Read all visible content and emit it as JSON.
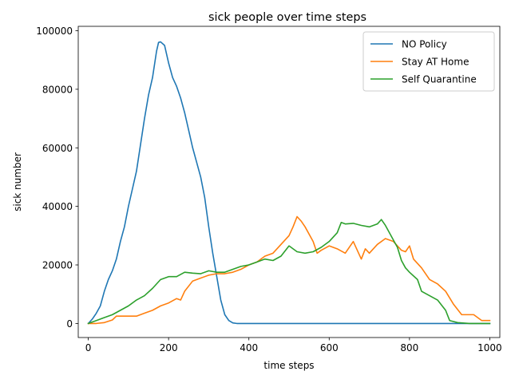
{
  "chart_data": {
    "type": "line",
    "title": "sick people over time steps",
    "xlabel": "time steps",
    "ylabel": "sick number",
    "xlim": [
      -25,
      1025
    ],
    "ylim": [
      -4800,
      101500
    ],
    "xticks": [
      0,
      200,
      400,
      600,
      800,
      1000
    ],
    "yticks": [
      0,
      20000,
      40000,
      60000,
      80000,
      100000
    ],
    "xtick_labels": [
      "0",
      "200",
      "400",
      "600",
      "800",
      "1000"
    ],
    "ytick_labels": [
      "0",
      "20000",
      "40000",
      "60000",
      "80000",
      "100000"
    ],
    "grid": false,
    "legend_position": "top-right",
    "series": [
      {
        "name": "NO Policy",
        "color": "#1f77b4",
        "points": [
          [
            0,
            0
          ],
          [
            10,
            1500
          ],
          [
            20,
            3500
          ],
          [
            30,
            6000
          ],
          [
            40,
            11000
          ],
          [
            50,
            15000
          ],
          [
            60,
            18000
          ],
          [
            70,
            22000
          ],
          [
            80,
            28000
          ],
          [
            90,
            33000
          ],
          [
            100,
            40000
          ],
          [
            110,
            46000
          ],
          [
            120,
            52000
          ],
          [
            130,
            61000
          ],
          [
            140,
            70000
          ],
          [
            150,
            78000
          ],
          [
            160,
            84000
          ],
          [
            170,
            93000
          ],
          [
            175,
            96000
          ],
          [
            180,
            96200
          ],
          [
            190,
            95000
          ],
          [
            200,
            89000
          ],
          [
            210,
            84000
          ],
          [
            220,
            81000
          ],
          [
            230,
            77000
          ],
          [
            240,
            72000
          ],
          [
            250,
            66000
          ],
          [
            260,
            60000
          ],
          [
            270,
            55000
          ],
          [
            280,
            50000
          ],
          [
            290,
            43000
          ],
          [
            300,
            33000
          ],
          [
            310,
            24000
          ],
          [
            320,
            16000
          ],
          [
            330,
            8000
          ],
          [
            340,
            3000
          ],
          [
            350,
            1000
          ],
          [
            360,
            200
          ],
          [
            370,
            0
          ],
          [
            1000,
            0
          ]
        ]
      },
      {
        "name": "Stay AT Home",
        "color": "#ff7f0e",
        "points": [
          [
            0,
            0
          ],
          [
            20,
            0
          ],
          [
            40,
            300
          ],
          [
            60,
            1200
          ],
          [
            70,
            2500
          ],
          [
            100,
            2500
          ],
          [
            120,
            2500
          ],
          [
            140,
            3500
          ],
          [
            160,
            4500
          ],
          [
            180,
            6000
          ],
          [
            200,
            7000
          ],
          [
            220,
            8500
          ],
          [
            230,
            8000
          ],
          [
            240,
            11000
          ],
          [
            260,
            14500
          ],
          [
            280,
            15500
          ],
          [
            300,
            16500
          ],
          [
            320,
            17000
          ],
          [
            340,
            17000
          ],
          [
            360,
            17500
          ],
          [
            380,
            18500
          ],
          [
            400,
            20000
          ],
          [
            420,
            21000
          ],
          [
            440,
            23000
          ],
          [
            460,
            24000
          ],
          [
            480,
            27000
          ],
          [
            500,
            30000
          ],
          [
            510,
            33000
          ],
          [
            520,
            36500
          ],
          [
            530,
            35000
          ],
          [
            540,
            33000
          ],
          [
            560,
            28000
          ],
          [
            570,
            24000
          ],
          [
            580,
            25000
          ],
          [
            600,
            26500
          ],
          [
            620,
            25500
          ],
          [
            640,
            24000
          ],
          [
            660,
            28000
          ],
          [
            680,
            22000
          ],
          [
            690,
            25500
          ],
          [
            700,
            24000
          ],
          [
            720,
            27000
          ],
          [
            740,
            29000
          ],
          [
            760,
            28000
          ],
          [
            780,
            25000
          ],
          [
            790,
            24500
          ],
          [
            800,
            26500
          ],
          [
            810,
            22000
          ],
          [
            830,
            19000
          ],
          [
            850,
            15000
          ],
          [
            870,
            13500
          ],
          [
            890,
            11000
          ],
          [
            910,
            6500
          ],
          [
            930,
            3000
          ],
          [
            960,
            3000
          ],
          [
            980,
            1000
          ],
          [
            1000,
            1000
          ]
        ]
      },
      {
        "name": "Self Quarantine",
        "color": "#2ca02c",
        "points": [
          [
            0,
            0
          ],
          [
            20,
            1000
          ],
          [
            40,
            2000
          ],
          [
            60,
            3000
          ],
          [
            80,
            4500
          ],
          [
            100,
            6000
          ],
          [
            120,
            8000
          ],
          [
            140,
            9500
          ],
          [
            160,
            12000
          ],
          [
            180,
            15000
          ],
          [
            200,
            16000
          ],
          [
            220,
            16000
          ],
          [
            240,
            17500
          ],
          [
            260,
            17200
          ],
          [
            280,
            17000
          ],
          [
            300,
            18000
          ],
          [
            320,
            17500
          ],
          [
            340,
            17500
          ],
          [
            360,
            18500
          ],
          [
            380,
            19500
          ],
          [
            400,
            20000
          ],
          [
            420,
            21000
          ],
          [
            440,
            22000
          ],
          [
            460,
            21500
          ],
          [
            480,
            23000
          ],
          [
            500,
            26500
          ],
          [
            520,
            24500
          ],
          [
            540,
            24000
          ],
          [
            560,
            24500
          ],
          [
            580,
            26000
          ],
          [
            600,
            28000
          ],
          [
            620,
            31000
          ],
          [
            630,
            34500
          ],
          [
            640,
            34000
          ],
          [
            660,
            34200
          ],
          [
            680,
            33500
          ],
          [
            700,
            33000
          ],
          [
            720,
            34000
          ],
          [
            730,
            35500
          ],
          [
            740,
            33500
          ],
          [
            760,
            28500
          ],
          [
            770,
            26000
          ],
          [
            780,
            21500
          ],
          [
            790,
            19000
          ],
          [
            800,
            17500
          ],
          [
            820,
            15000
          ],
          [
            830,
            11000
          ],
          [
            850,
            9500
          ],
          [
            870,
            8000
          ],
          [
            890,
            4500
          ],
          [
            900,
            1000
          ],
          [
            920,
            300
          ],
          [
            950,
            0
          ],
          [
            1000,
            0
          ]
        ]
      }
    ]
  }
}
